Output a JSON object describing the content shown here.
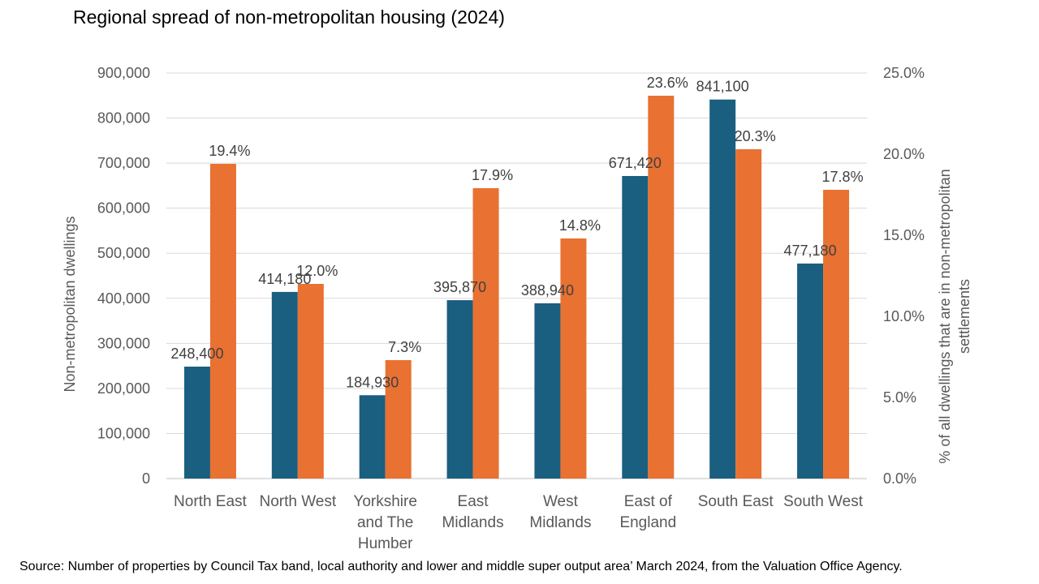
{
  "title": "Regional spread of non-metropolitan housing (2024)",
  "source": "Source: Number of properties by Council Tax band, local authority and lower and middle super output area’ March 2024, from the Valuation Office Agency.",
  "chart_data": {
    "type": "bar",
    "title": "Regional spread of non-metropolitan housing (2024)",
    "categories": [
      [
        "North East"
      ],
      [
        "North West"
      ],
      [
        "Yorkshire",
        "and The",
        "Humber"
      ],
      [
        "East",
        "Midlands"
      ],
      [
        "West",
        "Midlands"
      ],
      [
        "East of",
        "England"
      ],
      [
        "South East"
      ],
      [
        "South West"
      ]
    ],
    "series": [
      {
        "color": "#1a5e80",
        "axis": "left",
        "values": [
          248400,
          414180,
          184930,
          395870,
          388940,
          671420,
          841100,
          477180
        ],
        "labels": [
          "248,400",
          "414,180",
          "184,930",
          "395,870",
          "388,940",
          "671,420",
          "841,100",
          "477,180"
        ]
      },
      {
        "color": "#e97132",
        "axis": "right",
        "values": [
          19.4,
          12.0,
          7.3,
          17.9,
          14.8,
          23.6,
          20.3,
          17.8
        ],
        "labels": [
          "19.4%",
          "12.0%",
          "7.3%",
          "17.9%",
          "14.8%",
          "23.6%",
          "20.3%",
          "17.8%"
        ]
      }
    ],
    "ylabel": "Non-metropolitan dwellings",
    "y2label": [
      "% of all dwellings that are in non-metropolitan",
      "settlements"
    ],
    "ylim": [
      0,
      900000
    ],
    "y2lim": [
      0,
      25
    ],
    "yticks": [
      "0",
      "100,000",
      "200,000",
      "300,000",
      "400,000",
      "500,000",
      "600,000",
      "700,000",
      "800,000",
      "900,000"
    ],
    "y2ticks": [
      "0.0%",
      "5.0%",
      "10.0%",
      "15.0%",
      "20.0%",
      "25.0%"
    ],
    "grid": true,
    "legend": "none"
  }
}
